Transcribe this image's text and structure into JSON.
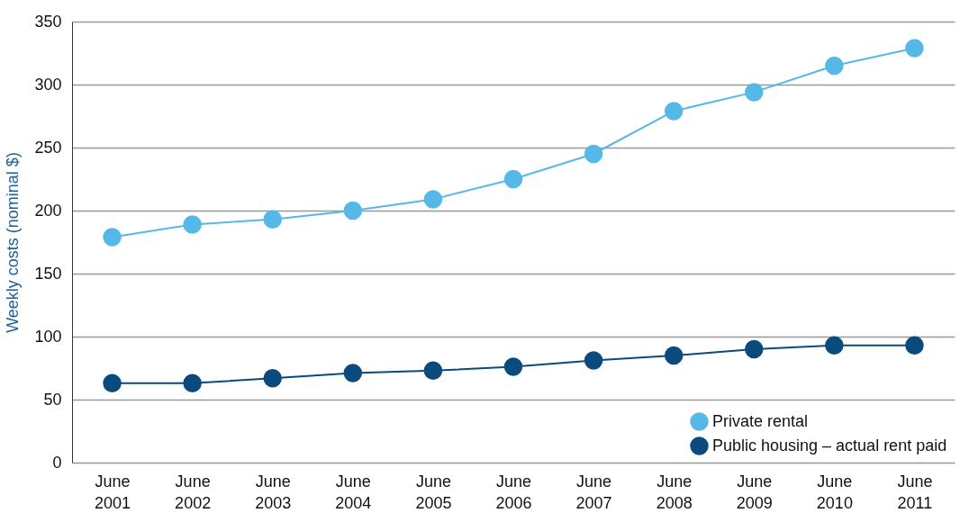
{
  "chart_data": {
    "type": "line",
    "ylabel": "Weekly costs (nominal $)",
    "categories": [
      "June 2001",
      "June 2002",
      "June 2003",
      "June 2004",
      "June 2005",
      "June 2006",
      "June 2007",
      "June 2008",
      "June 2009",
      "June 2010",
      "June 2011"
    ],
    "series": [
      {
        "name": "Private rental",
        "color": "#56b8e6",
        "values": [
          179,
          189,
          193,
          200,
          209,
          225,
          245,
          279,
          294,
          315,
          329
        ]
      },
      {
        "name": "Public housing – actual rent paid",
        "color": "#0a4a7c",
        "values": [
          63,
          63,
          67,
          71,
          73,
          76,
          81,
          85,
          90,
          93,
          93
        ]
      }
    ],
    "ylim": [
      0,
      350
    ],
    "yticks": [
      0,
      50,
      100,
      150,
      200,
      250,
      300,
      350
    ],
    "grid": "y",
    "legend": "bottom right",
    "marker": "circle",
    "line_style": "solid"
  }
}
